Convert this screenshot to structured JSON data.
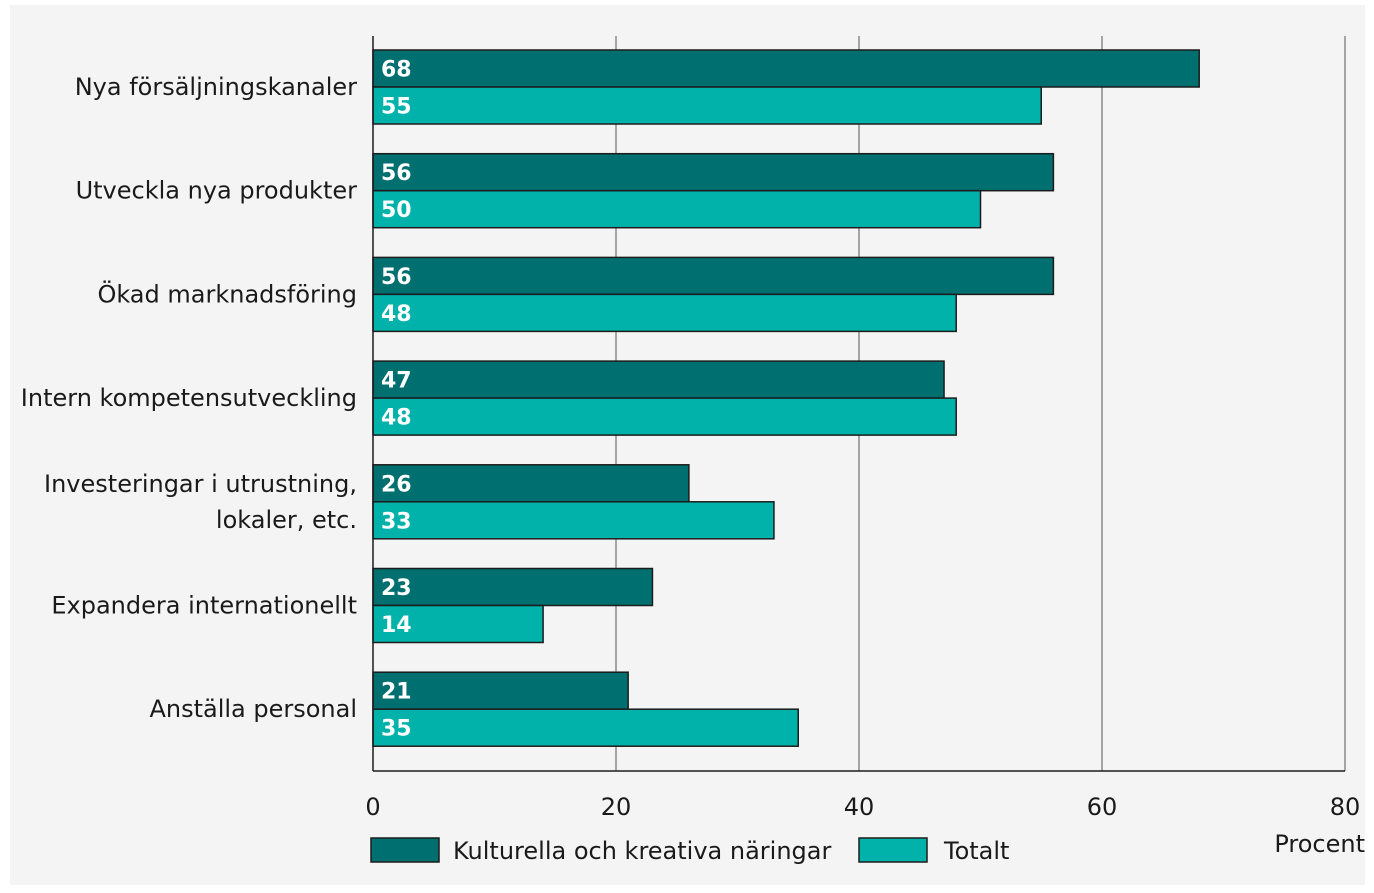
{
  "chart_data": {
    "type": "bar",
    "orientation": "horizontal",
    "categories": [
      [
        "Nya försäljningskanaler"
      ],
      [
        "Utveckla nya produkter"
      ],
      [
        "Ökad marknadsföring"
      ],
      [
        "Intern kompetensutveckling"
      ],
      [
        "Investeringar i utrustning,",
        "lokaler, etc."
      ],
      [
        "Expandera internationellt"
      ],
      [
        "Anställa personal"
      ]
    ],
    "series": [
      {
        "name": "Kulturella och kreativa näringar",
        "color": "#006f6f",
        "values": [
          68,
          56,
          56,
          47,
          26,
          23,
          21
        ]
      },
      {
        "name": "Totalt",
        "color": "#00b2a9",
        "values": [
          55,
          50,
          48,
          48,
          33,
          14,
          35
        ]
      }
    ],
    "xlim": [
      0,
      80
    ],
    "xticks": [
      0,
      20,
      40,
      60,
      80
    ],
    "xunit": "Procent",
    "grid": true,
    "legend_position": "bottom"
  }
}
